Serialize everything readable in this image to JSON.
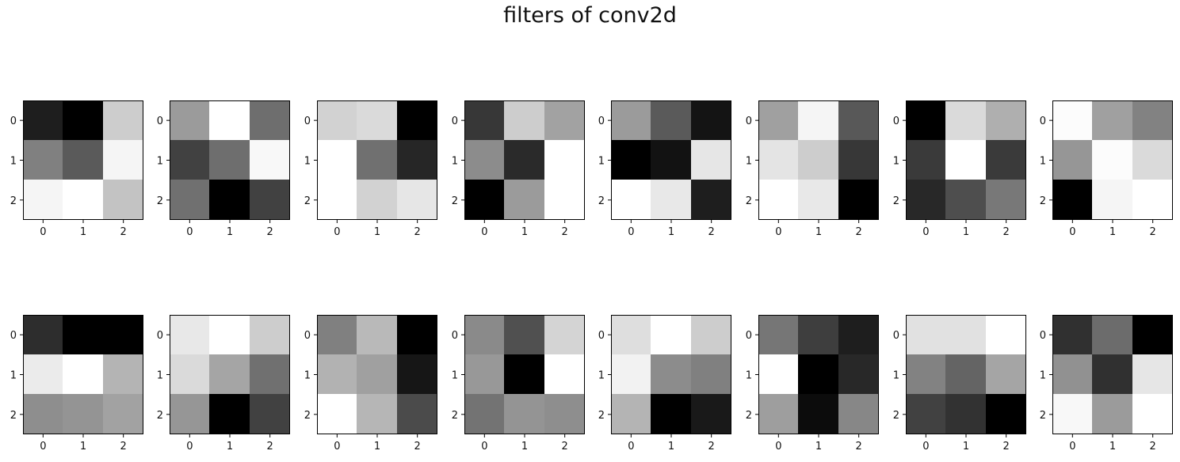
{
  "title": "filters of conv2d",
  "chart_data": {
    "type": "heatmap",
    "title": "filters of conv2d",
    "colormap": "gray",
    "value_range": [
      0,
      255
    ],
    "grid": false,
    "rows": 2,
    "cols": 8,
    "x_ticks": [
      "0",
      "1",
      "2"
    ],
    "y_ticks": [
      "0",
      "1",
      "2"
    ],
    "filters": [
      [
        [
          30,
          0,
          205
        ],
        [
          128,
          90,
          245
        ],
        [
          245,
          255,
          195
        ]
      ],
      [
        [
          155,
          255,
          110
        ],
        [
          65,
          110,
          248
        ],
        [
          112,
          0,
          65
        ]
      ],
      [
        [
          210,
          218,
          0
        ],
        [
          255,
          112,
          38
        ],
        [
          255,
          210,
          230
        ]
      ],
      [
        [
          55,
          205,
          162
        ],
        [
          140,
          42,
          255
        ],
        [
          0,
          155,
          255
        ]
      ],
      [
        [
          155,
          90,
          20
        ],
        [
          0,
          18,
          230
        ],
        [
          255,
          232,
          30
        ]
      ],
      [
        [
          160,
          245,
          88
        ],
        [
          228,
          205,
          55
        ],
        [
          255,
          232,
          0
        ]
      ],
      [
        [
          0,
          218,
          175
        ],
        [
          58,
          255,
          58
        ],
        [
          40,
          78,
          120
        ]
      ],
      [
        [
          252,
          160,
          130
        ],
        [
          150,
          252,
          218
        ],
        [
          0,
          245,
          255
        ]
      ],
      [
        [
          45,
          0,
          0
        ],
        [
          235,
          255,
          180
        ],
        [
          142,
          148,
          162
        ]
      ],
      [
        [
          232,
          255,
          205
        ],
        [
          218,
          165,
          112
        ],
        [
          150,
          0,
          65
        ]
      ],
      [
        [
          128,
          185,
          0
        ],
        [
          178,
          160,
          22
        ],
        [
          255,
          182,
          75
        ]
      ],
      [
        [
          138,
          80,
          212
        ],
        [
          152,
          0,
          255
        ],
        [
          115,
          148,
          142
        ]
      ],
      [
        [
          222,
          255,
          205
        ],
        [
          242,
          140,
          128
        ],
        [
          180,
          0,
          25
        ]
      ],
      [
        [
          118,
          62,
          30
        ],
        [
          255,
          0,
          40
        ],
        [
          158,
          12,
          135
        ]
      ],
      [
        [
          225,
          225,
          255
        ],
        [
          130,
          100,
          165
        ],
        [
          65,
          50,
          0
        ]
      ],
      [
        [
          48,
          108,
          0
        ],
        [
          145,
          48,
          230
        ],
        [
          248,
          155,
          255
        ]
      ]
    ]
  }
}
